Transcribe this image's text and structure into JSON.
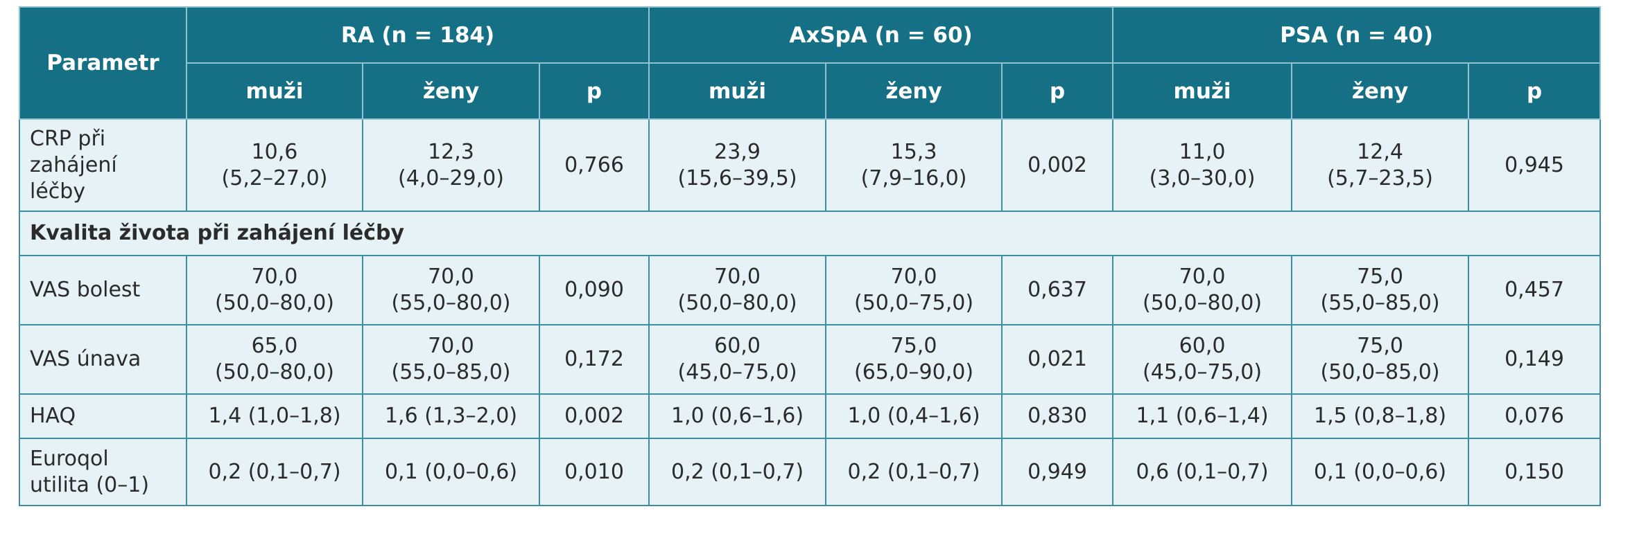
{
  "header": {
    "parametr": "Parametr",
    "groups": [
      {
        "label": "RA (n = 184)"
      },
      {
        "label": "AxSpA (n = 60)"
      },
      {
        "label": "PSA (n = 40)"
      }
    ],
    "sub": {
      "muzi": "muži",
      "zeny": "ženy",
      "p": "p"
    }
  },
  "rows": {
    "crp": {
      "label": [
        "CRP při",
        "zahájení",
        "léčby"
      ],
      "ra": {
        "m1": "10,6",
        "m2": "(5,2–27,0)",
        "z1": "12,3",
        "z2": "(4,0–29,0)",
        "p": "0,766"
      },
      "axspa": {
        "m1": "23,9",
        "m2": "(15,6–39,5)",
        "z1": "15,3",
        "z2": "(7,9–16,0)",
        "p": "0,002"
      },
      "psa": {
        "m1": "11,0",
        "m2": "(3,0–30,0)",
        "z1": "12,4",
        "z2": "(5,7–23,5)",
        "p": "0,945"
      }
    },
    "section": "Kvalita života při zahájení léčby",
    "vas_bolest": {
      "label": "VAS bolest",
      "ra": {
        "m1": "70,0",
        "m2": "(50,0–80,0)",
        "z1": "70,0",
        "z2": "(55,0–80,0)",
        "p": "0,090"
      },
      "axspa": {
        "m1": "70,0",
        "m2": "(50,0–80,0)",
        "z1": "70,0",
        "z2": "(50,0–75,0)",
        "p": "0,637"
      },
      "psa": {
        "m1": "70,0",
        "m2": "(50,0–80,0)",
        "z1": "75,0",
        "z2": "(55,0–85,0)",
        "p": "0,457"
      }
    },
    "vas_unava": {
      "label": "VAS únava",
      "ra": {
        "m1": "65,0",
        "m2": "(50,0–80,0)",
        "z1": "70,0",
        "z2": "(55,0–85,0)",
        "p": "0,172"
      },
      "axspa": {
        "m1": "60,0",
        "m2": "(45,0–75,0)",
        "z1": "75,0",
        "z2": "(65,0–90,0)",
        "p": "0,021"
      },
      "psa": {
        "m1": "60,0",
        "m2": "(45,0–75,0)",
        "z1": "75,0",
        "z2": "(50,0–85,0)",
        "p": "0,149"
      }
    },
    "haq": {
      "label": "HAQ",
      "ra": {
        "m": "1,4 (1,0–1,8)",
        "z": "1,6 (1,3–2,0)",
        "p": "0,002"
      },
      "axspa": {
        "m": "1,0 (0,6–1,6)",
        "z": "1,0 (0,4–1,6)",
        "p": "0,830"
      },
      "psa": {
        "m": "1,1 (0,6–1,4)",
        "z": "1,5 (0,8–1,8)",
        "p": "0,076"
      }
    },
    "euroqol": {
      "label": [
        "Euroqol",
        "utilita (0–1)"
      ],
      "ra": {
        "m": "0,2 (0,1–0,7)",
        "z": "0,1 (0,0–0,6)",
        "p": "0,010"
      },
      "axspa": {
        "m": "0,2 (0,1–0,7)",
        "z": "0,2 (0,1–0,7)",
        "p": "0,949"
      },
      "psa": {
        "m": "0,6 (0,1–0,7)",
        "z": "0,1 (0,0–0,6)",
        "p": "0,150"
      }
    }
  }
}
